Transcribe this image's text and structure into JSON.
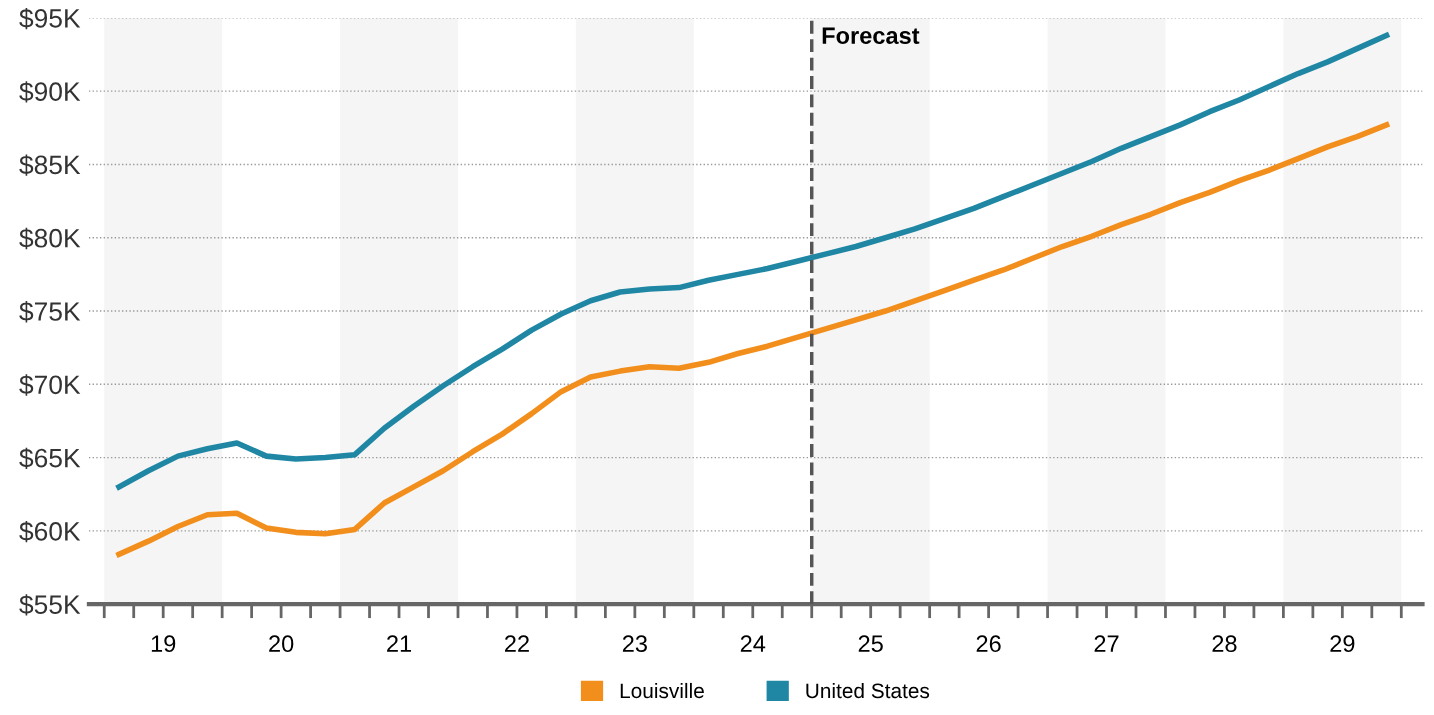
{
  "chart_data": {
    "type": "line",
    "x": [
      19.125,
      19.375,
      19.625,
      19.875,
      20.125,
      20.375,
      20.625,
      20.875,
      21.125,
      21.375,
      21.625,
      21.875,
      22.125,
      22.375,
      22.625,
      22.875,
      23.125,
      23.375,
      23.625,
      23.875,
      24.125,
      24.375,
      24.625,
      24.875,
      25.125,
      25.375,
      25.625,
      25.875,
      26.125,
      26.375,
      26.625,
      26.875,
      27.125,
      27.375,
      27.625,
      27.875,
      28.125,
      28.375,
      28.625,
      28.875,
      29.125,
      29.375,
      29.625,
      29.875
    ],
    "series": [
      {
        "name": "Louisville",
        "color": "#f28e1c",
        "values": [
          58400,
          59300,
          60300,
          61100,
          61200,
          60200,
          59900,
          59800,
          60100,
          61900,
          63000,
          64100,
          65400,
          66600,
          68000,
          69500,
          70500,
          70900,
          71200,
          71100,
          71500,
          72100,
          72600,
          73200,
          73800,
          74400,
          75000,
          75700,
          76400,
          77100,
          77800,
          78600,
          79400,
          80100,
          80900,
          81600,
          82400,
          83100,
          83900,
          84600,
          85400,
          86200,
          86900,
          87700
        ]
      },
      {
        "name": "United States",
        "color": "#1f87a4",
        "values": [
          63000,
          64100,
          65100,
          65600,
          66000,
          65100,
          64900,
          65000,
          65200,
          67000,
          68500,
          69900,
          71200,
          72400,
          73700,
          74800,
          75700,
          76300,
          76500,
          76600,
          77100,
          77500,
          77900,
          78400,
          78900,
          79400,
          80000,
          80600,
          81300,
          82000,
          82800,
          83600,
          84400,
          85200,
          86100,
          86900,
          87700,
          88600,
          89400,
          90300,
          91200,
          92000,
          92900,
          93800
        ]
      }
    ],
    "xlim": [
      18.87,
      30.18
    ],
    "xticks": [
      {
        "value": 19,
        "label": null
      },
      {
        "value": 19.25,
        "label": null
      },
      {
        "value": 19.5,
        "label": "19"
      },
      {
        "value": 19.75,
        "label": null
      },
      {
        "value": 20,
        "label": null
      },
      {
        "value": 20.25,
        "label": null
      },
      {
        "value": 20.5,
        "label": "20"
      },
      {
        "value": 20.75,
        "label": null
      },
      {
        "value": 21,
        "label": null
      },
      {
        "value": 21.25,
        "label": null
      },
      {
        "value": 21.5,
        "label": "21"
      },
      {
        "value": 21.75,
        "label": null
      },
      {
        "value": 22,
        "label": null
      },
      {
        "value": 22.25,
        "label": null
      },
      {
        "value": 22.5,
        "label": "22"
      },
      {
        "value": 22.75,
        "label": null
      },
      {
        "value": 23,
        "label": null
      },
      {
        "value": 23.25,
        "label": null
      },
      {
        "value": 23.5,
        "label": "23"
      },
      {
        "value": 23.75,
        "label": null
      },
      {
        "value": 24,
        "label": null
      },
      {
        "value": 24.25,
        "label": null
      },
      {
        "value": 24.5,
        "label": "24"
      },
      {
        "value": 24.75,
        "label": null
      },
      {
        "value": 25,
        "label": null
      },
      {
        "value": 25.25,
        "label": null
      },
      {
        "value": 25.5,
        "label": "25"
      },
      {
        "value": 25.75,
        "label": null
      },
      {
        "value": 26,
        "label": null
      },
      {
        "value": 26.25,
        "label": null
      },
      {
        "value": 26.5,
        "label": "26"
      },
      {
        "value": 26.75,
        "label": null
      },
      {
        "value": 27,
        "label": null
      },
      {
        "value": 27.25,
        "label": null
      },
      {
        "value": 27.5,
        "label": "27"
      },
      {
        "value": 27.75,
        "label": null
      },
      {
        "value": 28,
        "label": null
      },
      {
        "value": 28.25,
        "label": null
      },
      {
        "value": 28.5,
        "label": "28"
      },
      {
        "value": 28.75,
        "label": null
      },
      {
        "value": 29,
        "label": null
      },
      {
        "value": 29.25,
        "label": null
      },
      {
        "value": 29.5,
        "label": "29"
      },
      {
        "value": 29.75,
        "label": null
      },
      {
        "value": 30,
        "label": null
      }
    ],
    "ylim": [
      55000,
      95000
    ],
    "yticks": [
      {
        "value": 55000,
        "label": "$55K"
      },
      {
        "value": 60000,
        "label": "$60K"
      },
      {
        "value": 65000,
        "label": "$65K"
      },
      {
        "value": 70000,
        "label": "$70K"
      },
      {
        "value": 75000,
        "label": "$75K"
      },
      {
        "value": 80000,
        "label": "$80K"
      },
      {
        "value": 85000,
        "label": "$85K"
      },
      {
        "value": 90000,
        "label": "$90K"
      },
      {
        "value": 95000,
        "label": "$95K"
      }
    ],
    "bands": [
      {
        "axis": "x",
        "from": 19,
        "to": 20,
        "color": "#f5f5f5"
      },
      {
        "axis": "x",
        "from": 21,
        "to": 22,
        "color": "#f5f5f5"
      },
      {
        "axis": "x",
        "from": 23,
        "to": 24,
        "color": "#f5f5f5"
      },
      {
        "axis": "x",
        "from": 25,
        "to": 26,
        "color": "#f5f5f5"
      },
      {
        "axis": "x",
        "from": 27,
        "to": 28,
        "color": "#f5f5f5"
      },
      {
        "axis": "x",
        "from": 29,
        "to": 30,
        "color": "#f5f5f5"
      }
    ],
    "ref_lines": [
      {
        "axis": "x",
        "value": 25,
        "label": "Forecast",
        "color": "#555555",
        "line_style": "dashed"
      }
    ],
    "grid": "y",
    "legend": "bottom",
    "line_style": "solid",
    "marker": "none"
  }
}
